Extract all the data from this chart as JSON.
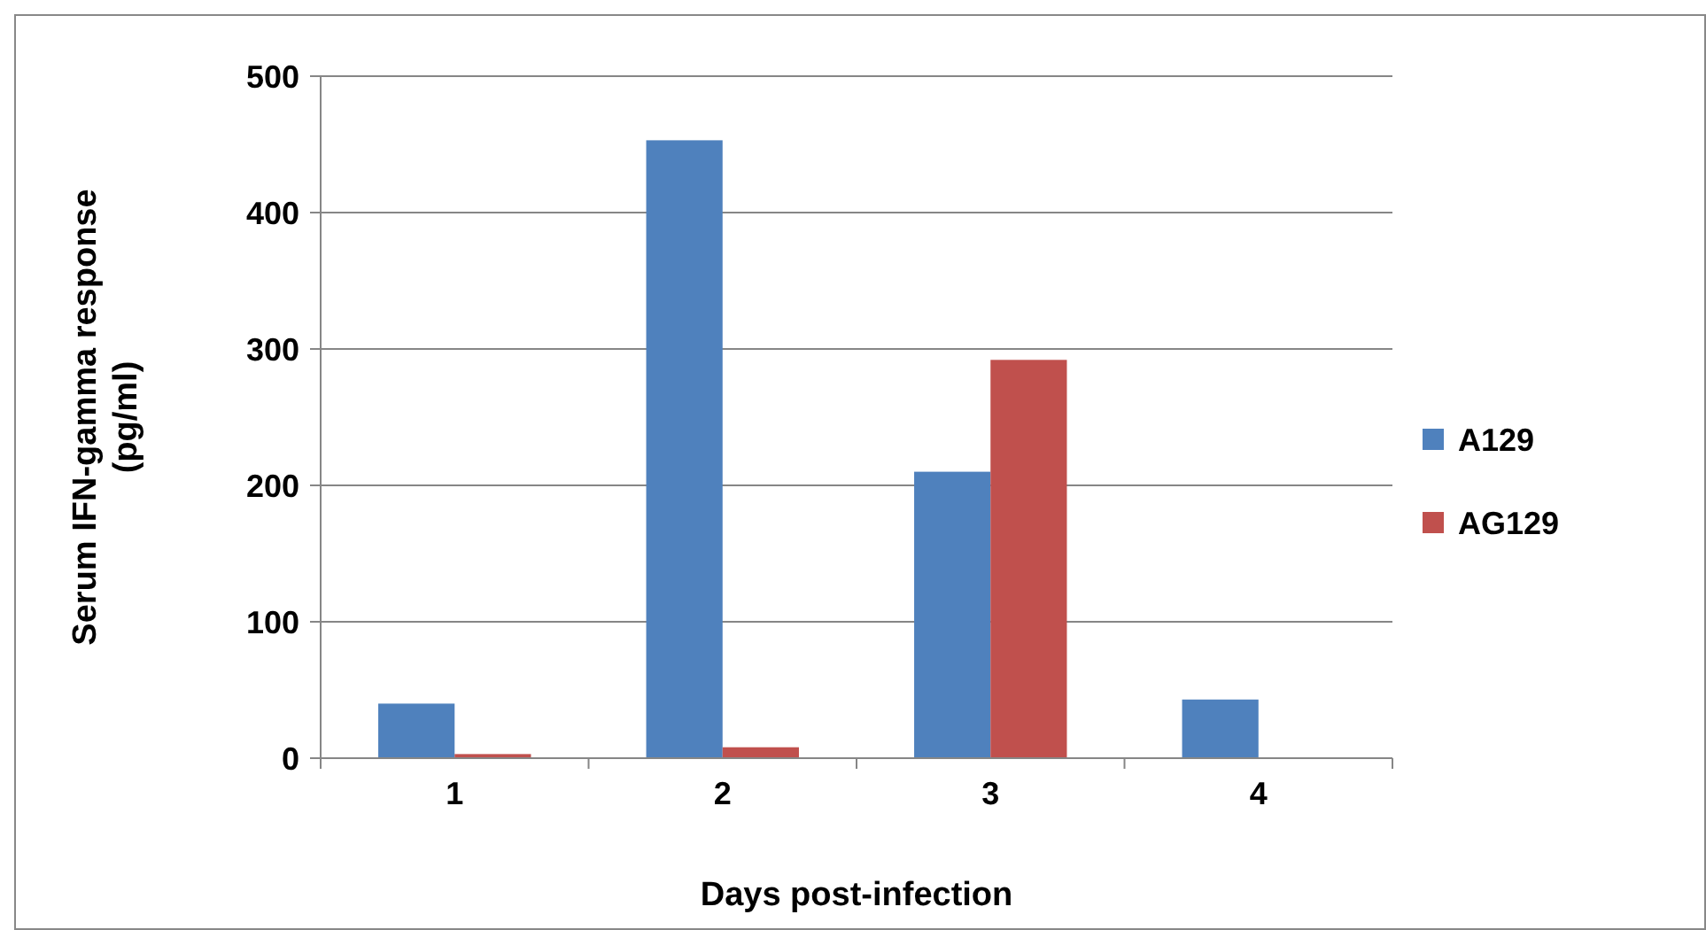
{
  "chart_data": {
    "type": "bar",
    "xlabel": "Days post-infection",
    "ylabel": "Serum IFN-gamma response (pg/ml)",
    "categories": [
      "1",
      "2",
      "3",
      "4"
    ],
    "series": [
      {
        "name": "A129",
        "color": "#4f81bd",
        "values": [
          40,
          453,
          210,
          43
        ]
      },
      {
        "name": "AG129",
        "color": "#c0504d",
        "values": [
          3,
          8,
          292,
          0
        ]
      }
    ],
    "ylim": [
      0,
      500
    ],
    "yticks": [
      0,
      100,
      200,
      300,
      400,
      500
    ],
    "grid": "y",
    "legend": "right"
  }
}
